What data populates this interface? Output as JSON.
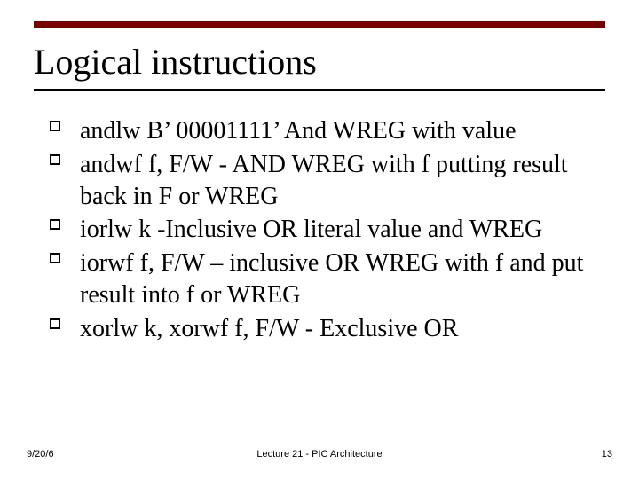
{
  "colors": {
    "top_rule": "#7a0000",
    "title_underline": "#000000",
    "background": "#ffffff",
    "text": "#000000"
  },
  "typography": {
    "title_fontsize_pt": 40,
    "body_fontsize_pt": 28,
    "footer_fontsize_pt": 11,
    "body_font": "Times New Roman",
    "footer_font": "Arial"
  },
  "title": "Logical instructions",
  "bullets": [
    "andlw B’ 00001111’    And WREG with value",
    "andwf  f, F/W  -    AND WREG with f putting result back in F or WREG",
    "iorlw k -Inclusive OR literal value and WREG",
    "iorwf  f, F/W – inclusive OR WREG with f and put result into f or WREG",
    "xorlw  k,  xorwf  f, F/W   - Exclusive OR"
  ],
  "footer": {
    "date": "9/20/6",
    "center": "Lecture 21 - PIC Architecture",
    "page": "13"
  }
}
